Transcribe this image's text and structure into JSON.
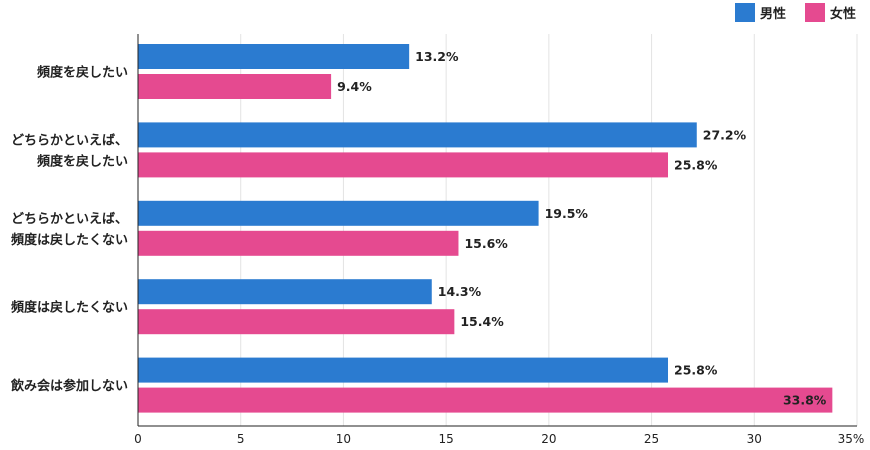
{
  "chart_data": {
    "type": "bar",
    "orientation": "horizontal",
    "categories": [
      [
        "頻度を戻したい"
      ],
      [
        "どちらかといえば、",
        "頻度を戻したい"
      ],
      [
        "どちらかといえば、",
        "頻度は戻したくない"
      ],
      [
        "頻度は戻したくない"
      ],
      [
        "飲み会は参加しない"
      ]
    ],
    "series": [
      {
        "name": "男性",
        "color": "#2b7bd0",
        "values": [
          13.2,
          27.2,
          19.5,
          14.3,
          25.8
        ]
      },
      {
        "name": "女性",
        "color": "#e54a90",
        "values": [
          9.4,
          25.8,
          15.6,
          15.4,
          33.8
        ]
      }
    ],
    "xlim": [
      0,
      35
    ],
    "xticks": [
      0,
      5,
      10,
      15,
      20,
      25,
      30,
      35
    ],
    "tick_suffix_last": "%",
    "value_suffix": "%",
    "grid": true,
    "legend": "top-right"
  }
}
